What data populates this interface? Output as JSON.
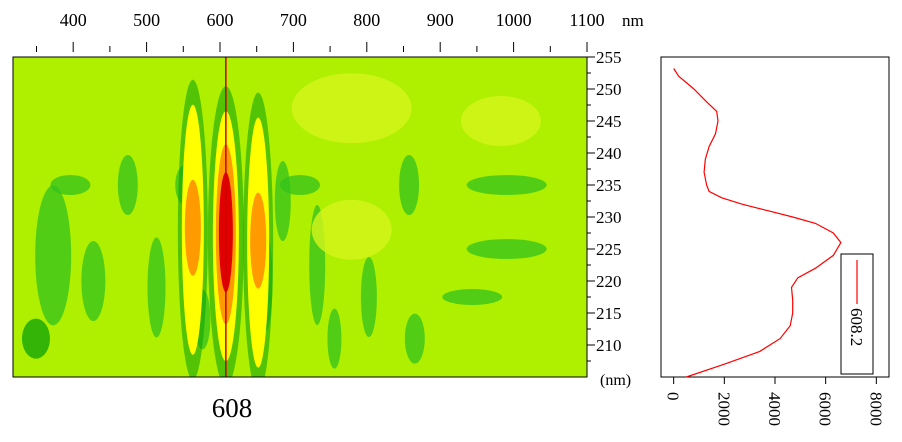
{
  "chart_data": [
    {
      "type": "heatmap",
      "x_axis": {
        "ticks": [
          400,
          500,
          600,
          700,
          800,
          900,
          1000,
          1100
        ],
        "unit": "nm",
        "range": [
          318,
          1100
        ]
      },
      "y_axis": {
        "ticks": [
          210,
          215,
          220,
          225,
          230,
          235,
          240,
          245,
          250,
          255
        ],
        "unit": "(nm)",
        "range": [
          205,
          255
        ]
      },
      "cursor": {
        "x": 608,
        "label": "608"
      },
      "bands": [
        {
          "x": 563,
          "y_center": 228,
          "peak": "orange"
        },
        {
          "x": 608,
          "y_center": 227,
          "peak": "red"
        },
        {
          "x": 652,
          "y_center": 226,
          "peak": "orange"
        }
      ],
      "colormap": [
        "#0aa00a",
        "#33c21c",
        "#aef000",
        "#ffff00",
        "#ff9a00",
        "#e10000"
      ]
    },
    {
      "type": "line",
      "orientation": "vertical",
      "x_axis": {
        "ticks": [
          0,
          2000,
          4000,
          6000,
          8000
        ],
        "range": [
          -500,
          8500
        ]
      },
      "y_axis": {
        "range": [
          205,
          255
        ]
      },
      "series": [
        {
          "name": "608.2",
          "color": "#ff0000",
          "points": [
            {
              "y": 205,
              "x": 500
            },
            {
              "y": 207,
              "x": 2000
            },
            {
              "y": 209,
              "x": 3400
            },
            {
              "y": 211,
              "x": 4200
            },
            {
              "y": 213,
              "x": 4600
            },
            {
              "y": 215,
              "x": 4700
            },
            {
              "y": 217,
              "x": 4700
            },
            {
              "y": 219,
              "x": 4650
            },
            {
              "y": 220.5,
              "x": 4900
            },
            {
              "y": 222,
              "x": 5600
            },
            {
              "y": 224,
              "x": 6300
            },
            {
              "y": 226,
              "x": 6600
            },
            {
              "y": 227.5,
              "x": 6300
            },
            {
              "y": 229,
              "x": 5600
            },
            {
              "y": 230,
              "x": 4700
            },
            {
              "y": 231,
              "x": 3700
            },
            {
              "y": 232,
              "x": 2700
            },
            {
              "y": 233,
              "x": 1900
            },
            {
              "y": 234,
              "x": 1400
            },
            {
              "y": 235,
              "x": 1300
            },
            {
              "y": 237,
              "x": 1200
            },
            {
              "y": 239,
              "x": 1250
            },
            {
              "y": 241,
              "x": 1400
            },
            {
              "y": 243,
              "x": 1650
            },
            {
              "y": 245,
              "x": 1750
            },
            {
              "y": 246.5,
              "x": 1700
            },
            {
              "y": 248,
              "x": 1300
            },
            {
              "y": 250,
              "x": 800
            },
            {
              "y": 252,
              "x": 200
            },
            {
              "y": 253.2,
              "x": 0
            }
          ]
        }
      ],
      "legend": {
        "entries": [
          "608.2"
        ],
        "placement": "bottom-right"
      }
    }
  ]
}
